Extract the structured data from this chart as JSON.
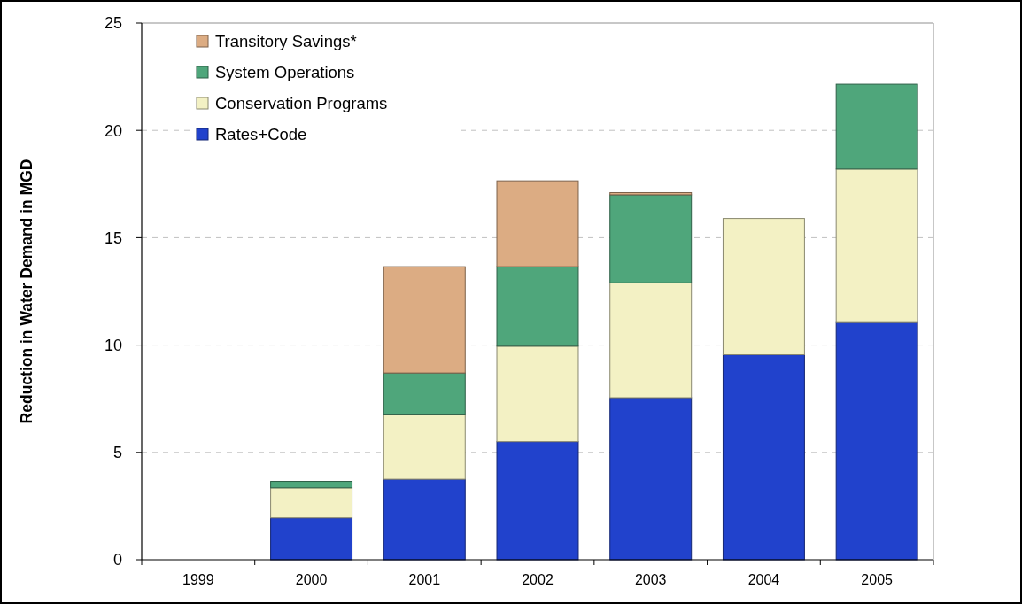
{
  "chart_data": {
    "type": "bar",
    "stacked": true,
    "ylabel": "Reduction in Water Demand in MGD",
    "categories": [
      "1999",
      "2000",
      "2001",
      "2002",
      "2003",
      "2004",
      "2005"
    ],
    "series": [
      {
        "name": "Rates+Code",
        "color": "#2142cc",
        "values": [
          null,
          1.95,
          3.75,
          5.5,
          7.55,
          9.55,
          11.05
        ]
      },
      {
        "name": "Conservation Programs",
        "color": "#f3f1c4",
        "values": [
          null,
          1.4,
          3.0,
          4.45,
          5.35,
          6.35,
          7.15
        ]
      },
      {
        "name": "System Operations",
        "color": "#4fa67b",
        "values": [
          null,
          0.3,
          1.95,
          3.7,
          4.1,
          null,
          3.95
        ]
      },
      {
        "name": "Transitory Savings*",
        "color": "#dcac83",
        "values": [
          null,
          null,
          4.95,
          4.0,
          0.1,
          null,
          null
        ]
      }
    ],
    "ylim": [
      0,
      25
    ],
    "yticks": [
      0,
      5,
      10,
      15,
      20,
      25
    ],
    "grid": "y",
    "legend": "top left"
  }
}
